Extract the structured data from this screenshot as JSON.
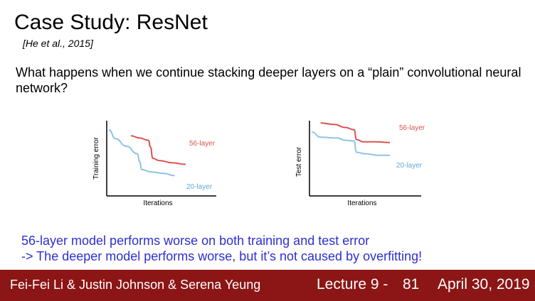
{
  "slide": {
    "title": "Case Study: ResNet",
    "citation": "[He et al., 2015]",
    "question": "What happens when we continue stacking deeper layers on a “plain” convolutional neural network?",
    "conclusion_line1": "56-layer model performs worse on both training and test error",
    "conclusion_line2": "-> The deeper model performs worse, but it’s not caused by overfitting!"
  },
  "footer": {
    "authors": "Fei-Fei Li & Justin Johnson & Serena Yeung",
    "lecture": "Lecture 9 -",
    "page": "81",
    "date": "April 30, 2019"
  },
  "colors": {
    "red_series": "#d9534f",
    "blue_series": "#8ec3e6",
    "footer_bg": "#8c1515",
    "conclusion_text": "#2f2fcf"
  },
  "chart_data": [
    {
      "type": "line",
      "xlabel": "Iterations",
      "ylabel": "Training error",
      "x_ticks_shown": false,
      "y_ticks_shown": false,
      "series": [
        {
          "name": "56-layer",
          "color": "#d9534f",
          "points": [
            [
              0.22,
              0.8
            ],
            [
              0.3,
              0.77
            ],
            [
              0.38,
              0.74
            ],
            [
              0.4,
              0.65
            ],
            [
              0.42,
              0.5
            ],
            [
              0.48,
              0.47
            ],
            [
              0.6,
              0.44
            ],
            [
              0.72,
              0.42
            ]
          ]
        },
        {
          "name": "20-layer",
          "color": "#8ec3e6",
          "points": [
            [
              0.02,
              0.88
            ],
            [
              0.08,
              0.76
            ],
            [
              0.18,
              0.66
            ],
            [
              0.28,
              0.56
            ],
            [
              0.3,
              0.46
            ],
            [
              0.32,
              0.35
            ],
            [
              0.4,
              0.32
            ],
            [
              0.52,
              0.3
            ],
            [
              0.62,
              0.27
            ]
          ]
        }
      ]
    },
    {
      "type": "line",
      "xlabel": "Iterations",
      "ylabel": "Test error",
      "x_ticks_shown": false,
      "y_ticks_shown": false,
      "series": [
        {
          "name": "56-layer",
          "color": "#d9534f",
          "points": [
            [
              0.1,
              0.97
            ],
            [
              0.22,
              0.95
            ],
            [
              0.32,
              0.91
            ],
            [
              0.4,
              0.88
            ],
            [
              0.42,
              0.75
            ],
            [
              0.48,
              0.72
            ],
            [
              0.6,
              0.72
            ],
            [
              0.72,
              0.71
            ]
          ]
        },
        {
          "name": "20-layer",
          "color": "#8ec3e6",
          "points": [
            [
              0.02,
              0.85
            ],
            [
              0.1,
              0.78
            ],
            [
              0.25,
              0.77
            ],
            [
              0.32,
              0.74
            ],
            [
              0.4,
              0.73
            ],
            [
              0.42,
              0.58
            ],
            [
              0.5,
              0.56
            ],
            [
              0.62,
              0.54
            ],
            [
              0.72,
              0.54
            ]
          ]
        }
      ]
    }
  ]
}
